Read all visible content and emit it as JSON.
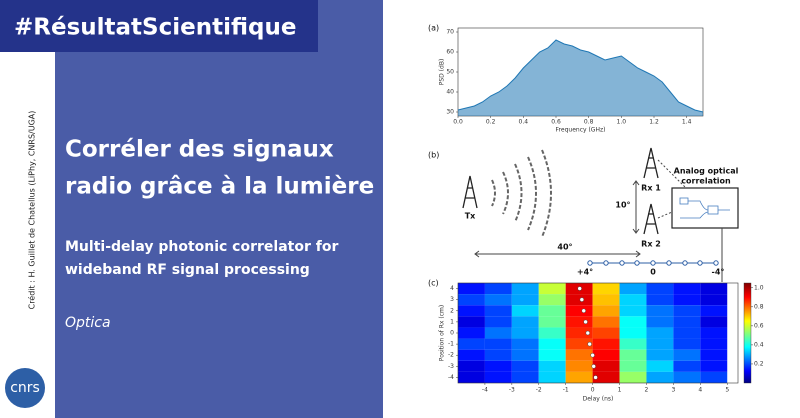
{
  "header": {
    "hashtag": "#RésultatScientifique"
  },
  "credit": "Crédit : H. Guillet de Chatellus (LiPhy, CNRS/UGA)",
  "logo": "cnrs",
  "title_lines": [
    "Corréler des signaux",
    "radio grâce à la lumière"
  ],
  "subtitle_lines": [
    "Multi-delay photonic correlator for",
    "wideband RF signal processing"
  ],
  "journal": "Optica",
  "figure": {
    "panel_labels": [
      "(a)",
      "(b)",
      "(c)"
    ],
    "diagram": {
      "tx": "Tx",
      "rx1": "Rx 1",
      "rx2": "Rx 2",
      "box_title_lines": [
        "Analog optical",
        "correlation"
      ],
      "spacing": "10°",
      "angle": "40°",
      "positions": [
        "+4°",
        "0",
        "-4°"
      ]
    }
  },
  "chart_data": [
    {
      "type": "line",
      "xlabel": "Frequency (GHz)",
      "ylabel": "PSD (dB)",
      "color": "#1f77b4",
      "x": [
        0,
        0.05,
        0.1,
        0.15,
        0.2,
        0.25,
        0.3,
        0.35,
        0.4,
        0.45,
        0.5,
        0.55,
        0.6,
        0.65,
        0.7,
        0.75,
        0.8,
        0.85,
        0.9,
        0.95,
        1.0,
        1.05,
        1.1,
        1.15,
        1.2,
        1.25,
        1.3,
        1.35,
        1.4,
        1.45,
        1.5
      ],
      "values": [
        31,
        32,
        33,
        35,
        38,
        40,
        43,
        47,
        52,
        56,
        60,
        62,
        66,
        64,
        63,
        61,
        60,
        58,
        56,
        57,
        58,
        55,
        52,
        50,
        48,
        45,
        40,
        35,
        33,
        31,
        30
      ],
      "xlim": [
        0,
        1.5
      ],
      "ylim": [
        28,
        72
      ],
      "xticks": [
        {
          "value": 0,
          "label": "0.0"
        },
        0.2,
        0.4,
        0.6,
        0.8,
        {
          "value": 1,
          "label": "1.0"
        },
        1.2,
        1.4
      ],
      "yticks": [
        30,
        40,
        50,
        60,
        70
      ]
    },
    {
      "type": "heatmap",
      "xlabel": "Delay (ns)",
      "ylabel": "Position of Rx (cm)",
      "x": [
        -4.5,
        -3.5,
        -2.5,
        -1.5,
        -0.5,
        0.5,
        1.5,
        2.5,
        3.5,
        4.5
      ],
      "y": [
        4,
        3,
        2,
        1,
        0,
        -1,
        -2,
        -3,
        -4
      ],
      "values": [
        [
          0.15,
          0.2,
          0.3,
          0.6,
          0.95,
          0.7,
          0.3,
          0.2,
          0.15,
          0.1
        ],
        [
          0.2,
          0.25,
          0.3,
          0.55,
          0.95,
          0.72,
          0.35,
          0.2,
          0.15,
          0.1
        ],
        [
          0.15,
          0.2,
          0.35,
          0.5,
          0.92,
          0.75,
          0.35,
          0.25,
          0.2,
          0.15
        ],
        [
          0.1,
          0.2,
          0.3,
          0.5,
          0.9,
          0.8,
          0.4,
          0.25,
          0.2,
          0.1
        ],
        [
          0.15,
          0.25,
          0.3,
          0.45,
          0.88,
          0.85,
          0.4,
          0.3,
          0.2,
          0.15
        ],
        [
          0.2,
          0.2,
          0.25,
          0.4,
          0.85,
          0.9,
          0.45,
          0.3,
          0.2,
          0.15
        ],
        [
          0.15,
          0.2,
          0.25,
          0.4,
          0.8,
          0.92,
          0.5,
          0.3,
          0.25,
          0.15
        ],
        [
          0.1,
          0.15,
          0.2,
          0.35,
          0.78,
          0.95,
          0.5,
          0.35,
          0.2,
          0.15
        ],
        [
          0.1,
          0.15,
          0.2,
          0.35,
          0.75,
          0.95,
          0.55,
          0.3,
          0.25,
          0.2
        ]
      ],
      "peaks": [
        -0.48,
        -0.4,
        -0.33,
        -0.26,
        -0.18,
        -0.11,
        0,
        0.04,
        0.11
      ],
      "xlim": [
        -5,
        5.4
      ],
      "ylim": [
        -4.5,
        4.5
      ],
      "xticks": [
        -4,
        -3,
        -2,
        -1,
        0,
        1,
        2,
        3,
        4,
        5
      ],
      "yticks": [
        4,
        3,
        2,
        1,
        0,
        -1,
        -2,
        -3,
        -4
      ],
      "clim": [
        0,
        1.05
      ],
      "cticks": [
        0.2,
        0.4,
        0.6,
        0.8,
        {
          "value": 1,
          "label": "1.0"
        }
      ]
    }
  ]
}
